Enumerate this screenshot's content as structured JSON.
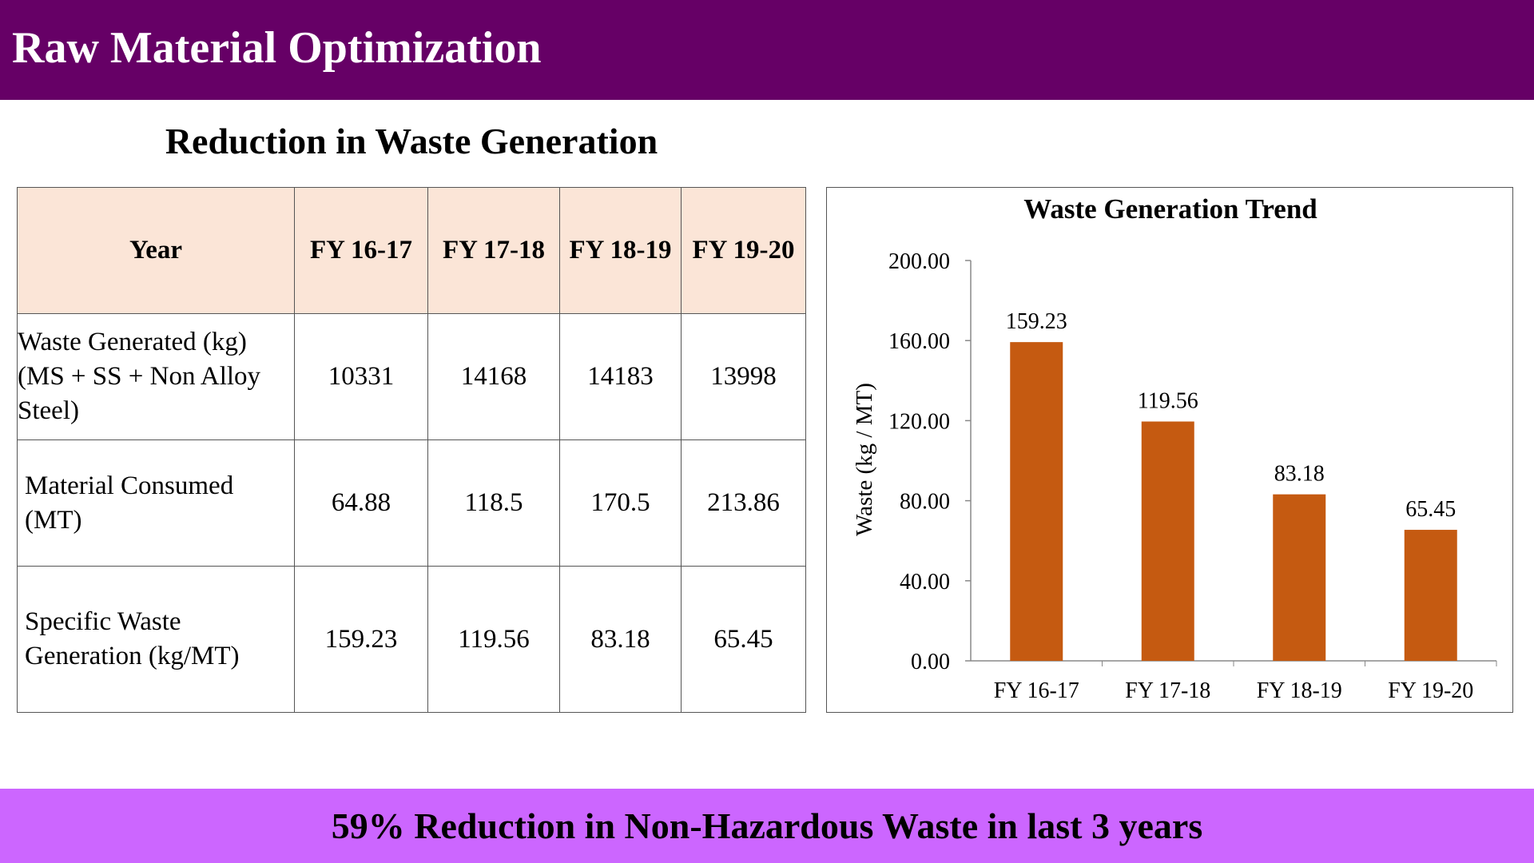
{
  "header": {
    "title": "Raw Material Optimization"
  },
  "section_title": "Reduction in Waste Generation",
  "table": {
    "header_label": "Year",
    "columns": [
      "FY 16-17",
      "FY 17-18",
      "FY 18-19",
      "FY 19-20"
    ],
    "rows": [
      {
        "label_lines": [
          "Waste Generated (kg)",
          "(MS + SS + Non Alloy",
          "Steel)"
        ],
        "values": [
          "10331",
          "14168",
          "14183",
          "13998"
        ]
      },
      {
        "label_lines": [
          "Material Consumed",
          "(MT)"
        ],
        "values": [
          "64.88",
          "118.5",
          "170.5",
          "213.86"
        ]
      },
      {
        "label_lines": [
          "Specific Waste",
          "Generation (kg/MT)"
        ],
        "values": [
          "159.23",
          "119.56",
          "83.18",
          "65.45"
        ]
      }
    ]
  },
  "chart_data": {
    "type": "bar",
    "title": "Waste Generation Trend",
    "ylabel": "Waste (kg / MT)",
    "xlabel": "",
    "categories": [
      "FY 16-17",
      "FY 17-18",
      "FY 18-19",
      "FY 19-20"
    ],
    "values": [
      159.23,
      119.56,
      83.18,
      65.45
    ],
    "data_labels": [
      "159.23",
      "119.56",
      "83.18",
      "65.45"
    ],
    "ylim": [
      0,
      200
    ],
    "yticks": [
      0,
      40,
      80,
      120,
      160,
      200
    ],
    "ytick_labels": [
      "0.00",
      "40.00",
      "80.00",
      "120.00",
      "160.00",
      "200.00"
    ],
    "bar_color": "#c55a11",
    "grid": false,
    "legend": "none"
  },
  "footer": {
    "text": "59% Reduction in Non-Hazardous Waste in last 3 years"
  },
  "colors": {
    "header_bg": "#660066",
    "footer_bg": "#cc66ff",
    "table_header_bg": "#fbe5d7"
  }
}
